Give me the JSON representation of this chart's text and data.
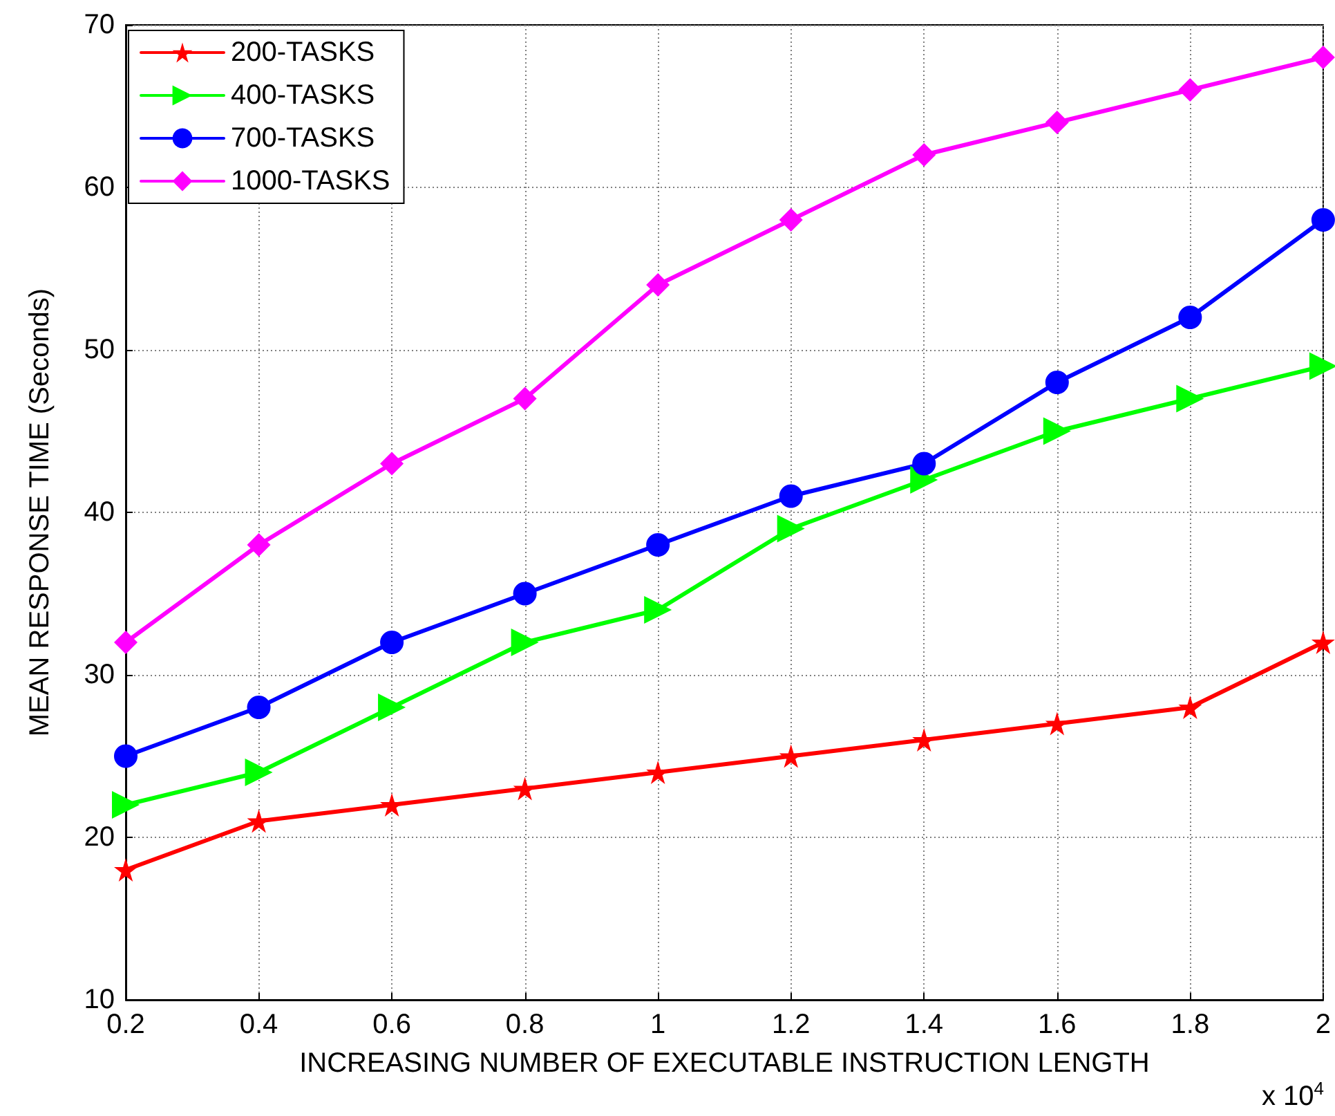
{
  "chart_data": {
    "type": "line",
    "xlabel": "INCREASING NUMBER OF EXECUTABLE INSTRUCTION LENGTH",
    "ylabel": "MEAN RESPONSE TIME (Seconds)",
    "x": [
      0.2,
      0.4,
      0.6,
      0.8,
      1,
      1.2,
      1.4,
      1.6,
      1.8,
      2
    ],
    "series": [
      {
        "name": "200-TASKS",
        "color": "#ff0000",
        "marker": "star",
        "values": [
          18,
          21,
          22,
          23,
          24,
          25,
          26,
          27,
          28,
          32
        ]
      },
      {
        "name": "400-TASKS",
        "color": "#00ff00",
        "marker": "triangle",
        "values": [
          22,
          24,
          28,
          32,
          34,
          39,
          42,
          45,
          47,
          49
        ]
      },
      {
        "name": "700-TASKS",
        "color": "#0000ff",
        "marker": "circle",
        "values": [
          25,
          28,
          32,
          35,
          38,
          41,
          43,
          48,
          52,
          58
        ]
      },
      {
        "name": "1000-TASKS",
        "color": "#ff00ff",
        "marker": "diamond",
        "values": [
          32,
          38,
          43,
          47,
          54,
          58,
          62,
          64,
          66,
          68
        ]
      }
    ],
    "xlim": [
      0.2,
      2
    ],
    "xticks": [
      0.2,
      0.4,
      0.6,
      0.8,
      1,
      1.2,
      1.4,
      1.6,
      1.8,
      2
    ],
    "ylim": [
      10,
      70
    ],
    "yticks": [
      10,
      20,
      30,
      40,
      50,
      60,
      70
    ],
    "grid": true,
    "legend": "top left",
    "line_style": "solid",
    "annotations": [
      "x 10$^{4}$"
    ]
  }
}
